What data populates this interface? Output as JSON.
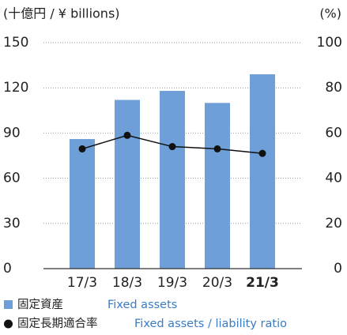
{
  "chart_data": {
    "type": "bar",
    "y_label": "(十億円 / ¥ billions)",
    "y2_label": "(%)",
    "categories": [
      "17/3",
      "18/3",
      "19/3",
      "20/3",
      "21/3"
    ],
    "series": [
      {
        "name": "固定資産",
        "name_en": "Fixed assets",
        "type": "bar",
        "color": "#6f9fd8",
        "values": [
          86,
          112,
          118,
          110,
          129
        ]
      },
      {
        "name": "固定長期適合率",
        "name_en": "Fixed assets / liability ratio",
        "type": "line",
        "axis": "y2",
        "color": "#111111",
        "values": [
          53,
          59,
          54,
          53,
          51
        ]
      }
    ],
    "ylim": [
      0,
      150
    ],
    "yticks": [
      0,
      30,
      60,
      90,
      120,
      150
    ],
    "y2lim": [
      0,
      100
    ],
    "y2ticks": [
      0,
      20,
      40,
      60,
      80,
      100
    ],
    "grid": true
  }
}
